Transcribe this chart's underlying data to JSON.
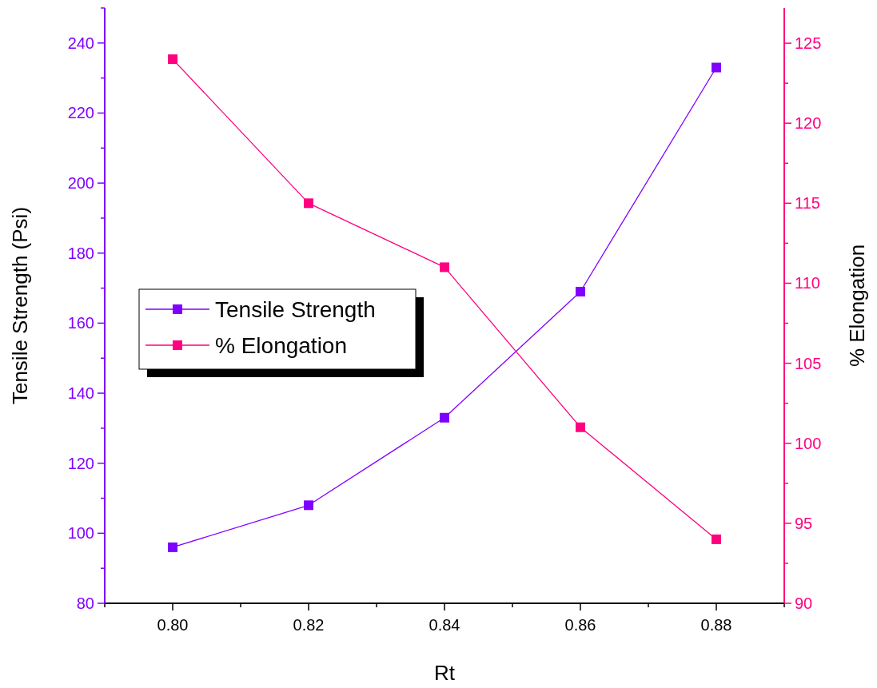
{
  "chart_data": {
    "type": "line",
    "xlabel": "Rt",
    "ylabel": "Tensile Strength (Psi)",
    "y2label": "% Elongation",
    "x": [
      0.8,
      0.82,
      0.84,
      0.86,
      0.88
    ],
    "series": [
      {
        "name": "Tensile Strength",
        "color": "#8000ff",
        "values": [
          96,
          108,
          133,
          169,
          233
        ]
      },
      {
        "name": "% Elongation",
        "color": "#ff0080",
        "values": [
          124,
          115,
          111,
          101,
          94
        ],
        "axis": "y2"
      }
    ],
    "xlim": [
      0.79,
      0.89
    ],
    "xticks": [
      {
        "value": 0.79,
        "label": null
      },
      {
        "value": 0.8,
        "label": "0.80"
      },
      {
        "value": 0.81,
        "label": null
      },
      {
        "value": 0.82,
        "label": "0.82"
      },
      {
        "value": 0.83,
        "label": null
      },
      {
        "value": 0.84,
        "label": "0.84"
      },
      {
        "value": 0.85,
        "label": null
      },
      {
        "value": 0.86,
        "label": "0.86"
      },
      {
        "value": 0.87,
        "label": null
      },
      {
        "value": 0.88,
        "label": "0.88"
      },
      {
        "value": 0.89,
        "label": null
      }
    ],
    "ylim": [
      80,
      250
    ],
    "yticks": [
      80,
      {
        "value": 90,
        "label": null
      },
      100,
      {
        "value": 110,
        "label": null
      },
      120,
      {
        "value": 130,
        "label": null
      },
      140,
      {
        "value": 150,
        "label": null
      },
      160,
      {
        "value": 170,
        "label": null
      },
      180,
      {
        "value": 190,
        "label": null
      },
      200,
      {
        "value": 210,
        "label": null
      },
      220,
      {
        "value": 230,
        "label": null
      },
      240,
      {
        "value": 250,
        "label": null
      }
    ],
    "y2lim": [
      90,
      127.2
    ],
    "y2ticks": [
      90,
      {
        "value": 92.5,
        "label": null
      },
      95,
      {
        "value": 97.5,
        "label": null
      },
      100,
      {
        "value": 102.5,
        "label": null
      },
      105,
      {
        "value": 107.5,
        "label": null
      },
      110,
      {
        "value": 112.5,
        "label": null
      },
      115,
      {
        "value": 117.5,
        "label": null
      },
      120,
      {
        "value": 122.5,
        "label": null
      },
      125
    ],
    "legend": "left",
    "marker": "square",
    "line_style": "solid",
    "grid": false
  }
}
